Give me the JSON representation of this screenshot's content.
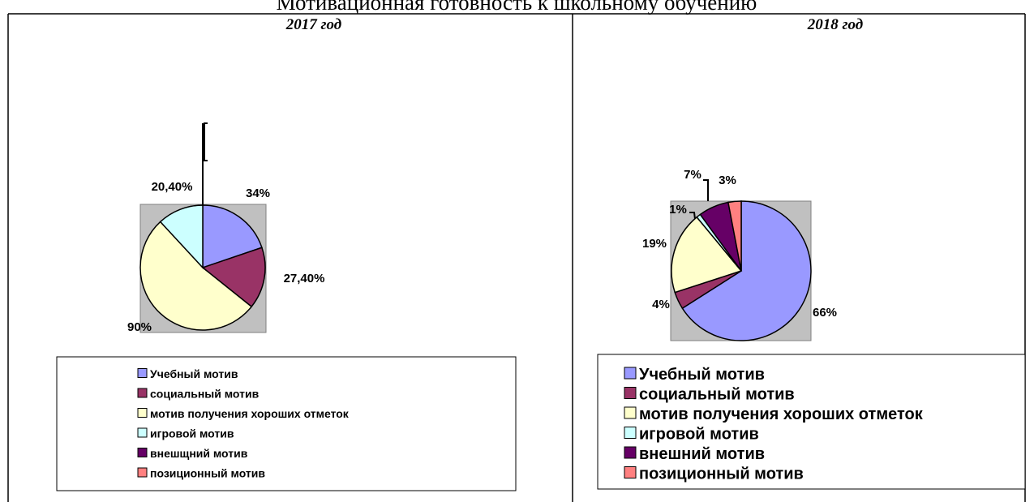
{
  "title": "Мотивационная готовность к школьному обучению",
  "chart_data": [
    {
      "type": "pie",
      "title": "2017 год",
      "categories": [
        "Учебный мотив",
        "социальный мотив",
        "мотив получения хороших отметок",
        "игровой мотив",
        "внешщний мотив",
        "позиционный мотив"
      ],
      "values": [
        34,
        27.4,
        90,
        20.4,
        null,
        null
      ],
      "value_labels": [
        "34%",
        "27,40%",
        "90%",
        "20,40%",
        null,
        null
      ],
      "colors": [
        "#9999ff",
        "#993366",
        "#ffffcc",
        "#ccffff",
        "#660066",
        "#ff8080"
      ]
    },
    {
      "type": "pie",
      "title": "2018 год",
      "categories": [
        "Учебный мотив",
        "социальный мотив",
        "мотив получения хороших отметок",
        "игровой мотив",
        "внешний мотив",
        "позиционный мотив"
      ],
      "values": [
        66,
        4,
        19,
        1,
        7,
        3
      ],
      "colors": [
        "#9999ff",
        "#993366",
        "#ffffcc",
        "#ccffff",
        "#660066",
        "#ff8080"
      ]
    }
  ]
}
